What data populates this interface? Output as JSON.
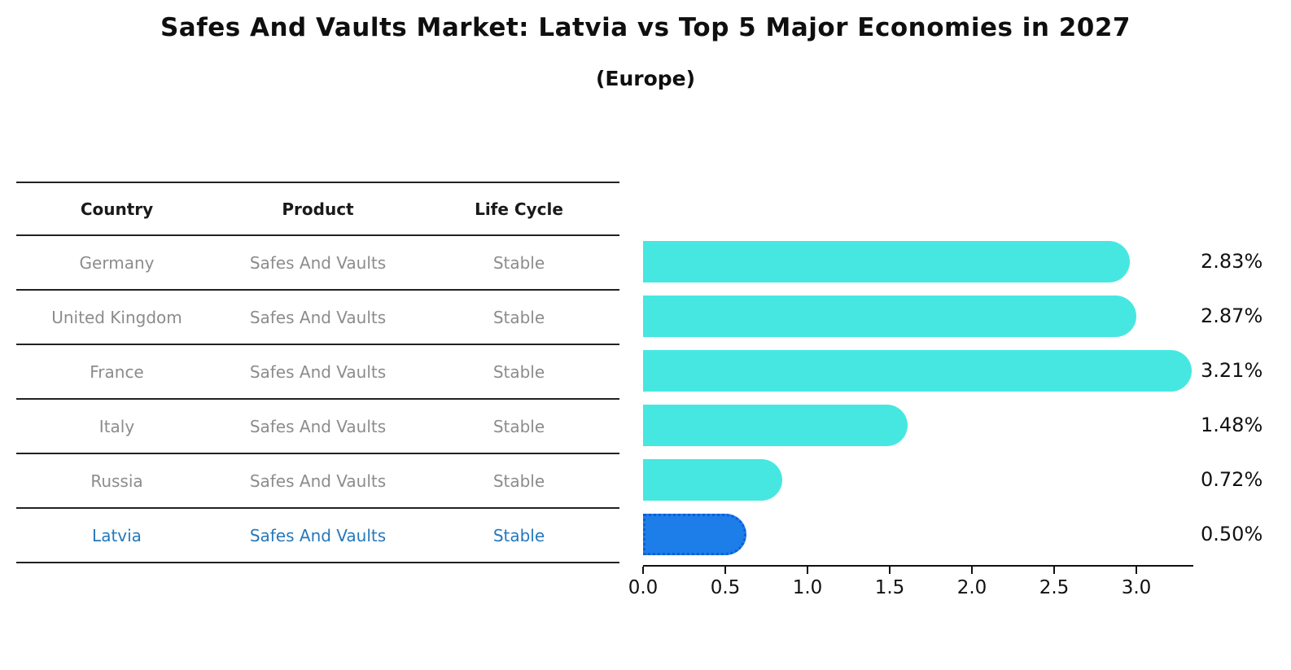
{
  "title": "Safes And Vaults Market: Latvia vs Top 5 Major Economies in 2027",
  "subtitle": "(Europe)",
  "table": {
    "headers": [
      "Country",
      "Product",
      "Life Cycle"
    ],
    "rows": [
      {
        "country": "Germany",
        "product": "Safes And Vaults",
        "life_cycle": "Stable",
        "highlight": false
      },
      {
        "country": "United Kingdom",
        "product": "Safes And Vaults",
        "life_cycle": "Stable",
        "highlight": false
      },
      {
        "country": "France",
        "product": "Safes And Vaults",
        "life_cycle": "Stable",
        "highlight": false
      },
      {
        "country": "Italy",
        "product": "Safes And Vaults",
        "life_cycle": "Stable",
        "highlight": false
      },
      {
        "country": "Russia",
        "product": "Safes And Vaults",
        "life_cycle": "Stable",
        "highlight": false
      },
      {
        "country": "Latvia",
        "product": "Safes And Vaults",
        "life_cycle": "Stable",
        "highlight": true
      }
    ]
  },
  "chart_data": {
    "type": "bar",
    "orientation": "horizontal",
    "title": "Safes And Vaults Market: Latvia vs Top 5 Major Economies in 2027",
    "subtitle": "(Europe)",
    "categories": [
      "Germany",
      "United Kingdom",
      "France",
      "Italy",
      "Russia",
      "Latvia"
    ],
    "values": [
      2.83,
      2.87,
      3.21,
      1.48,
      0.72,
      0.5
    ],
    "value_labels": [
      "2.83%",
      "2.87%",
      "3.21%",
      "1.48%",
      "0.72%",
      "0.50%"
    ],
    "xticks": [
      "0.0",
      "0.5",
      "1.0",
      "1.5",
      "2.0",
      "2.5",
      "3.0"
    ],
    "xtick_values": [
      0,
      0.5,
      1.0,
      1.5,
      2.0,
      2.5,
      3.0
    ],
    "xlim": [
      0,
      3.35
    ],
    "grid": false,
    "legend": "none",
    "bar_color": "#47E7E1",
    "highlight_bar_color": "#1D7DE9",
    "highlight_border_color": "#0D5FD6",
    "highlight_index": 5
  },
  "colors": {
    "background": "#FFFFFF",
    "title": "#0F0F0F",
    "table_header": "#1A1A1A",
    "table_text": "#8C8C8C",
    "highlight_text": "#2478BD",
    "row_line": "#222222",
    "axis": "#111111",
    "value_label": "#111111"
  }
}
